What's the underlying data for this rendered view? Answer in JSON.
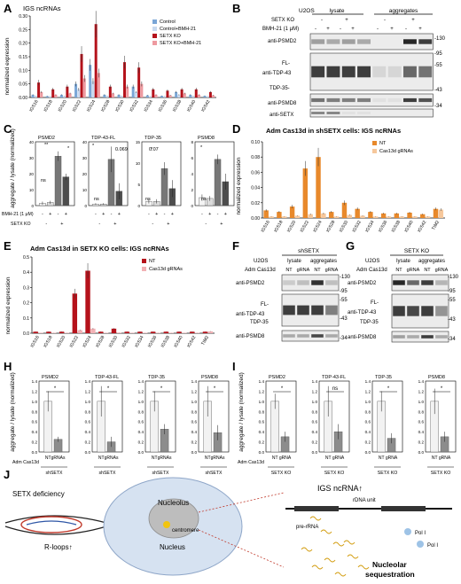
{
  "panels": {
    "A": {
      "letter": "A",
      "title": "IGS ncRNAs",
      "ylabel": "normalized expression",
      "legend": [
        "Control",
        "Control+BMH-21",
        "SETX KO",
        "SETX KO+BMH-21"
      ],
      "colors": [
        "#7aa6d6",
        "#c9daf0",
        "#b5121b",
        "#ee9aa0"
      ]
    },
    "B": {
      "letter": "B",
      "cell": "U2OS",
      "groups": [
        "lysate",
        "aggregates"
      ],
      "rows": [
        {
          "label": "SETX KO",
          "values": [
            "-",
            "+",
            "-",
            "+"
          ]
        },
        {
          "label": "BMH-21 (1 μM)",
          "values": [
            "-",
            "+",
            "-",
            "+",
            "-",
            "+",
            "-",
            "+"
          ]
        }
      ],
      "blots": [
        "anti-PSMD2",
        "FL-",
        "anti-TDP-43",
        "TDP-35-",
        "anti-PSMD8",
        "anti-SETX"
      ],
      "mw": [
        "-130",
        "-95",
        "-55",
        "-43",
        "-34"
      ]
    },
    "C": {
      "letter": "C",
      "ylabel": "aggregate / lysate (normalized)",
      "sub_titles": [
        "PSMD2",
        "TDP-43-FL",
        "TDP-35",
        "PSMD8"
      ],
      "xrows": [
        {
          "label": "BMH-21 (1 μM)",
          "values": [
            "-",
            "+",
            "-",
            "+"
          ]
        },
        {
          "label": "SETX KO",
          "values": [
            "-",
            "+"
          ]
        }
      ],
      "annotations": [
        "ns",
        "**",
        "*",
        "*",
        "0.069",
        "*",
        "0.07",
        "*",
        "ns",
        "ns",
        "ns"
      ]
    },
    "D": {
      "letter": "D",
      "title": "Adm Cas13d in shSETX cells: IGS ncRNAs",
      "ylabel": "normalized expression",
      "legend": [
        "NT",
        "Cas13d gRNAs"
      ]
    },
    "E": {
      "letter": "E",
      "title": "Adm Cas13d in SETX KO cells: IGS ncRNAs",
      "ylabel": "normalized expression",
      "legend": [
        "NT",
        "Cas13d gRNAs"
      ]
    },
    "F": {
      "letter": "F",
      "header": "shSETX",
      "row1": "U2OS",
      "row2": "Adm Cas13d",
      "groups": [
        "lysate",
        "aggregates"
      ],
      "lanes": [
        "NT",
        "gRNA",
        "NT",
        "gRNA"
      ],
      "blots": [
        "anti-PSMD2",
        "FL-",
        "anti-TDP-43",
        "TDP-35",
        "anti-PSMD8"
      ],
      "mw": [
        "-130",
        "-95",
        "-55",
        "-43",
        "-34"
      ]
    },
    "G": {
      "letter": "G",
      "header": "SETX KO",
      "row1": "U2OS",
      "row2": "Adm Cas13d",
      "groups": [
        "lysate",
        "aggregates"
      ],
      "lanes": [
        "NT",
        "gRNA",
        "NT",
        "gRNA"
      ],
      "blots": [
        "anti-PSMD2",
        "FL-",
        "anti-TDP-43",
        "TDP-35",
        "anti-PSMD8"
      ],
      "mw": [
        "-130",
        "-95",
        "-55",
        "-43",
        "-34"
      ]
    },
    "H": {
      "letter": "H",
      "ylabel": "aggregate / lysate (normalized)",
      "sub_titles": [
        "PSMD2",
        "TDP-43-FL",
        "TDP-35",
        "PSMD8"
      ],
      "row_label": "Adm Cas13d",
      "lanes": [
        "NT",
        "gRNAs"
      ],
      "group": "shSETX",
      "sig": [
        "*",
        "*",
        "*",
        "*"
      ]
    },
    "I": {
      "letter": "I",
      "ylabel": "aggregate / lysate (normalized)",
      "sub_titles": [
        "PSMD2",
        "TDP-43-FL",
        "TDP-35",
        "PSMD8"
      ],
      "row_label": "Adm Cas13d",
      "lanes": [
        "NT",
        "gRNA"
      ],
      "group": "SETX KO",
      "sig": [
        "*",
        "ns",
        "*",
        "*"
      ]
    },
    "J": {
      "letter": "J",
      "setx": "SETX deficiency",
      "rloops": "R-loops↑",
      "nucleolus": "Nucleolus",
      "centromere": "centromere",
      "nucleus": "Nucleus",
      "igs": "IGS ncRNA↑",
      "rdna": "rDNA unit",
      "prerrna": "pre-rRNA",
      "pol1": "Pol I",
      "pol2": "Pol I",
      "seq1": "Nucleolar",
      "seq2": "sequestration"
    }
  },
  "chart_data": [
    {
      "panel": "A",
      "type": "bar",
      "title": "IGS ncRNAs",
      "ylabel": "normalized expression",
      "categories": [
        "IGS16",
        "IGS18",
        "IGS20",
        "IGS22",
        "IGS24",
        "IGS28",
        "IGS30",
        "IGS32",
        "IGS34",
        "IGS36",
        "IGS38",
        "IGS40",
        "IGS42"
      ],
      "ylim": [
        0,
        0.3
      ],
      "yticks": [
        "0.00",
        "0.05",
        "0.10",
        "0.15",
        "0.20",
        "0.25",
        "0.30"
      ],
      "series": [
        {
          "name": "Control",
          "values": [
            0.01,
            0.005,
            0.01,
            0.05,
            0.12,
            0.01,
            0.01,
            0.04,
            0.008,
            0.006,
            0.02,
            0.01,
            0.006
          ]
        },
        {
          "name": "Control+BMH-21",
          "values": [
            0.005,
            0.004,
            0.005,
            0.03,
            0.06,
            0.005,
            0.005,
            0.02,
            0.004,
            0.004,
            0.01,
            0.005,
            0.004
          ]
        },
        {
          "name": "SETX KO",
          "values": [
            0.055,
            0.03,
            0.04,
            0.16,
            0.27,
            0.04,
            0.13,
            0.11,
            0.03,
            0.025,
            0.03,
            0.03,
            0.02
          ]
        },
        {
          "name": "SETX KO+BMH-21",
          "values": [
            0.02,
            0.01,
            0.015,
            0.07,
            0.09,
            0.015,
            0.04,
            0.05,
            0.01,
            0.008,
            0.015,
            0.01,
            0.008
          ]
        }
      ]
    },
    {
      "panel": "D",
      "type": "bar",
      "title": "Adm Cas13d in shSETX cells: IGS ncRNAs",
      "ylabel": "normalized expression",
      "categories": [
        "IGS16",
        "IGS18",
        "IGS20",
        "IGS22",
        "IGS24",
        "IGS28",
        "IGS30",
        "IGS32",
        "IGS34",
        "IGS36",
        "IGS38",
        "IGS40",
        "IGS42",
        "TIM2"
      ],
      "ylim": [
        0,
        0.1
      ],
      "yticks": [
        "0.00",
        "0.02",
        "0.04",
        "0.06",
        "0.08",
        "0.10"
      ],
      "series": [
        {
          "name": "NT",
          "values": [
            0.01,
            0.008,
            0.015,
            0.065,
            0.08,
            0.008,
            0.02,
            0.012,
            0.008,
            0.006,
            0.006,
            0.007,
            0.005,
            0.012
          ]
        },
        {
          "name": "Cas13d gRNAs",
          "values": [
            0.002,
            0.002,
            0.003,
            0.005,
            0.006,
            0.002,
            0.004,
            0.003,
            0.002,
            0.002,
            0.002,
            0.002,
            0.002,
            0.011
          ]
        }
      ]
    },
    {
      "panel": "E",
      "type": "bar",
      "title": "Adm Cas13d in SETX KO cells: IGS ncRNAs",
      "ylabel": "normalized expression",
      "categories": [
        "IGS16",
        "IGS18",
        "IGS20",
        "IGS22",
        "IGS24",
        "IGS28",
        "IGS30",
        "IGS32",
        "IGS34",
        "IGS36",
        "IGS38",
        "IGS40",
        "IGS42",
        "TIM2"
      ],
      "ylim": [
        0,
        0.5
      ],
      "yticks": [
        "0.0",
        "0.1",
        "0.2",
        "0.3",
        "0.4",
        "0.5"
      ],
      "series": [
        {
          "name": "NT",
          "values": [
            0.01,
            0.01,
            0.01,
            0.26,
            0.41,
            0.01,
            0.03,
            0.01,
            0.01,
            0.01,
            0.01,
            0.01,
            0.01,
            0.01
          ]
        },
        {
          "name": "Cas13d gRNAs",
          "values": [
            0.003,
            0.003,
            0.003,
            0.02,
            0.03,
            0.003,
            0.004,
            0.003,
            0.003,
            0.003,
            0.003,
            0.003,
            0.003,
            0.012
          ]
        }
      ]
    },
    {
      "panel": "C",
      "type": "bar",
      "ylabel": "aggregate / lysate (normalized)",
      "groups": [
        {
          "name": "PSMD2",
          "ylim": [
            0,
            40
          ],
          "yticks": [
            "0",
            "10",
            "20",
            "30",
            "40"
          ],
          "values": [
            1.5,
            2,
            31,
            18
          ],
          "errors": [
            1,
            1,
            3,
            2
          ]
        },
        {
          "name": "TDP-43-FL",
          "ylim": [
            0,
            40
          ],
          "yticks": [
            "0",
            "10",
            "20",
            "30",
            "40"
          ],
          "values": [
            1,
            1,
            29,
            9
          ],
          "errors": [
            0.5,
            0.5,
            8,
            5
          ]
        },
        {
          "name": "TDP-35",
          "ylim": [
            0,
            15
          ],
          "yticks": [
            "0",
            "5",
            "10",
            "15"
          ],
          "values": [
            1,
            1,
            8.7,
            4
          ],
          "errors": [
            0.5,
            0.5,
            1.5,
            2
          ]
        },
        {
          "name": "PSMD8",
          "ylim": [
            0,
            8
          ],
          "yticks": [
            "0",
            "2",
            "4",
            "6",
            "8"
          ],
          "values": [
            1,
            0.9,
            5.8,
            3
          ],
          "errors": [
            0.4,
            0.3,
            0.6,
            1
          ]
        }
      ]
    },
    {
      "panel": "H",
      "type": "bar",
      "ylabel": "aggregate / lysate (normalized)",
      "groups": [
        {
          "name": "PSMD2",
          "ylim": [
            0,
            1.4
          ],
          "yticks": [
            "0.0",
            "0.2",
            "0.4",
            "0.6",
            "0.8",
            "1.0",
            "1.2",
            "1.4"
          ],
          "values": [
            1.0,
            0.25
          ],
          "errors": [
            0.2,
            0.05
          ]
        },
        {
          "name": "TDP-43-FL",
          "ylim": [
            0,
            1.4
          ],
          "yticks": [
            "0.0",
            "0.2",
            "0.4",
            "0.6",
            "0.8",
            "1.0",
            "1.2",
            "1.4"
          ],
          "values": [
            1.0,
            0.2
          ],
          "errors": [
            0.3,
            0.1
          ]
        },
        {
          "name": "TDP-35",
          "ylim": [
            0,
            1.4
          ],
          "yticks": [
            "0.0",
            "0.2",
            "0.4",
            "0.6",
            "0.8",
            "1.0",
            "1.2",
            "1.4"
          ],
          "values": [
            1.0,
            0.45
          ],
          "errors": [
            0.2,
            0.1
          ]
        },
        {
          "name": "PSMD8",
          "ylim": [
            0,
            1.4
          ],
          "yticks": [
            "0.0",
            "0.2",
            "0.4",
            "0.6",
            "0.8",
            "1.0",
            "1.2",
            "1.4"
          ],
          "values": [
            1.0,
            0.38
          ],
          "errors": [
            0.3,
            0.15
          ]
        }
      ]
    },
    {
      "panel": "I",
      "type": "bar",
      "ylabel": "aggregate / lysate (normalized)",
      "groups": [
        {
          "name": "PSMD2",
          "ylim": [
            0,
            1.4
          ],
          "yticks": [
            "0.0",
            "0.2",
            "0.4",
            "0.6",
            "0.8",
            "1.0",
            "1.2",
            "1.4"
          ],
          "values": [
            1.0,
            0.3
          ],
          "errors": [
            0.15,
            0.1
          ]
        },
        {
          "name": "TDP-43-FL",
          "ylim": [
            0,
            1.4
          ],
          "yticks": [
            "0.0",
            "0.2",
            "0.4",
            "0.6",
            "0.8",
            "1.0",
            "1.2",
            "1.4"
          ],
          "values": [
            1.0,
            0.4
          ],
          "errors": [
            0.3,
            0.15
          ]
        },
        {
          "name": "TDP-35",
          "ylim": [
            0,
            1.4
          ],
          "yticks": [
            "0.0",
            "0.2",
            "0.4",
            "0.6",
            "0.8",
            "1.0",
            "1.2",
            "1.4"
          ],
          "values": [
            1.0,
            0.27
          ],
          "errors": [
            0.2,
            0.1
          ]
        },
        {
          "name": "PSMD8",
          "ylim": [
            0,
            1.4
          ],
          "yticks": [
            "0.0",
            "0.2",
            "0.4",
            "0.6",
            "0.8",
            "1.0",
            "1.2",
            "1.4"
          ],
          "values": [
            1.0,
            0.3
          ],
          "errors": [
            0.25,
            0.1
          ]
        }
      ]
    }
  ]
}
